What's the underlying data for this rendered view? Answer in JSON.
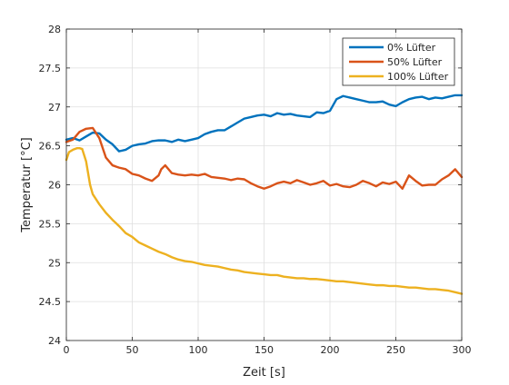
{
  "chart_data": {
    "type": "line",
    "title": "",
    "xlabel": "Zeit [s]",
    "ylabel": "Temperatur [°C]",
    "xlim": [
      0,
      300
    ],
    "ylim": [
      24,
      28
    ],
    "xticks": [
      0,
      50,
      100,
      150,
      200,
      250,
      300
    ],
    "yticks": [
      24,
      24.5,
      25,
      25.5,
      26,
      26.5,
      27,
      27.5,
      28
    ],
    "xtick_labels": [
      "0",
      "50",
      "100",
      "150",
      "200",
      "250",
      "300"
    ],
    "ytick_labels": [
      "24",
      "24.5",
      "25",
      "25.5",
      "26",
      "26.5",
      "27",
      "27.5",
      "28"
    ],
    "grid": true,
    "legend_position": "top-right",
    "series": [
      {
        "name": "0% Lüfter",
        "color": "#0072bd",
        "x": [
          0,
          5,
          10,
          15,
          20,
          25,
          30,
          35,
          40,
          45,
          50,
          55,
          60,
          65,
          70,
          75,
          80,
          85,
          90,
          95,
          100,
          105,
          110,
          115,
          120,
          125,
          130,
          135,
          140,
          145,
          150,
          155,
          160,
          165,
          170,
          175,
          180,
          185,
          190,
          195,
          200,
          205,
          210,
          215,
          220,
          225,
          230,
          235,
          240,
          245,
          250,
          255,
          260,
          265,
          270,
          275,
          280,
          285,
          290,
          295,
          300
        ],
        "y": [
          26.58,
          26.6,
          26.57,
          26.62,
          26.67,
          26.66,
          26.58,
          26.52,
          26.43,
          26.45,
          26.5,
          26.52,
          26.53,
          26.56,
          26.57,
          26.57,
          26.55,
          26.58,
          26.56,
          26.58,
          26.6,
          26.65,
          26.68,
          26.7,
          26.7,
          26.75,
          26.8,
          26.85,
          26.87,
          26.89,
          26.9,
          26.88,
          26.92,
          26.9,
          26.91,
          26.89,
          26.88,
          26.87,
          26.93,
          26.92,
          26.95,
          27.1,
          27.14,
          27.12,
          27.1,
          27.08,
          27.06,
          27.06,
          27.07,
          27.03,
          27.01,
          27.06,
          27.1,
          27.12,
          27.13,
          27.1,
          27.12,
          27.11,
          27.13,
          27.15,
          27.15
        ]
      },
      {
        "name": "50% Lüfter",
        "color": "#d95319",
        "x": [
          0,
          5,
          10,
          15,
          20,
          25,
          30,
          35,
          40,
          45,
          50,
          55,
          60,
          65,
          70,
          72,
          75,
          80,
          85,
          90,
          95,
          100,
          105,
          110,
          115,
          120,
          125,
          130,
          135,
          140,
          145,
          150,
          155,
          160,
          165,
          170,
          175,
          180,
          185,
          190,
          195,
          200,
          205,
          210,
          215,
          220,
          225,
          230,
          235,
          240,
          245,
          250,
          255,
          260,
          265,
          270,
          275,
          280,
          285,
          290,
          295,
          300
        ],
        "y": [
          26.55,
          26.58,
          26.68,
          26.72,
          26.73,
          26.6,
          26.35,
          26.25,
          26.22,
          26.2,
          26.14,
          26.12,
          26.08,
          26.05,
          26.12,
          26.2,
          26.25,
          26.15,
          26.13,
          26.12,
          26.13,
          26.12,
          26.14,
          26.1,
          26.09,
          26.08,
          26.06,
          26.08,
          26.07,
          26.02,
          25.98,
          25.95,
          25.98,
          26.02,
          26.04,
          26.02,
          26.06,
          26.03,
          26.0,
          26.02,
          26.05,
          25.99,
          26.01,
          25.98,
          25.97,
          26.0,
          26.05,
          26.02,
          25.98,
          26.03,
          26.01,
          26.04,
          25.95,
          26.12,
          26.05,
          25.99,
          26.0,
          26.0,
          26.07,
          26.12,
          26.2,
          26.1
        ]
      },
      {
        "name": "100% Lüfter",
        "color": "#edb120",
        "x": [
          0,
          2,
          5,
          8,
          10,
          12,
          15,
          18,
          20,
          25,
          30,
          35,
          40,
          45,
          50,
          55,
          60,
          65,
          70,
          75,
          80,
          85,
          90,
          95,
          100,
          105,
          110,
          115,
          120,
          125,
          130,
          135,
          140,
          145,
          150,
          155,
          160,
          165,
          170,
          175,
          180,
          185,
          190,
          195,
          200,
          205,
          210,
          215,
          220,
          225,
          230,
          235,
          240,
          245,
          250,
          255,
          260,
          265,
          270,
          275,
          280,
          285,
          290,
          295,
          300
        ],
        "y": [
          26.32,
          26.42,
          26.45,
          26.47,
          26.47,
          26.46,
          26.3,
          26.0,
          25.88,
          25.75,
          25.64,
          25.55,
          25.47,
          25.38,
          25.33,
          25.26,
          25.22,
          25.18,
          25.14,
          25.11,
          25.07,
          25.04,
          25.02,
          25.01,
          24.99,
          24.97,
          24.96,
          24.95,
          24.93,
          24.91,
          24.9,
          24.88,
          24.87,
          24.86,
          24.85,
          24.84,
          24.84,
          24.82,
          24.81,
          24.8,
          24.8,
          24.79,
          24.79,
          24.78,
          24.77,
          24.76,
          24.76,
          24.75,
          24.74,
          24.73,
          24.72,
          24.71,
          24.71,
          24.7,
          24.7,
          24.69,
          24.68,
          24.68,
          24.67,
          24.66,
          24.66,
          24.65,
          24.64,
          24.62,
          24.6
        ]
      }
    ]
  }
}
